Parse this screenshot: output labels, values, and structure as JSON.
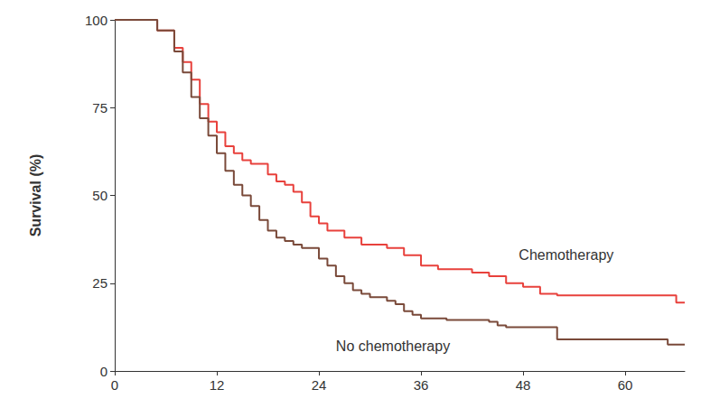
{
  "chart_data": {
    "type": "line",
    "y_label": "Survival (%)",
    "xlim": [
      0,
      67
    ],
    "xticks": [
      0,
      12,
      24,
      36,
      48,
      60
    ],
    "ylim": [
      0,
      100
    ],
    "yticks": [
      0,
      25,
      50,
      75,
      100
    ],
    "grid": false,
    "line_style": "step",
    "series": [
      {
        "name": "Chemotherapy",
        "color": "#e8413c",
        "x": [
          0,
          3,
          5,
          7,
          8,
          9,
          10,
          11,
          12,
          13,
          14,
          15,
          16,
          18,
          19,
          20,
          21,
          22,
          23,
          24,
          25,
          27,
          29,
          32,
          34,
          36,
          38,
          42,
          44,
          46,
          48,
          50,
          52,
          66,
          67
        ],
        "values": [
          100,
          100,
          97,
          92,
          88,
          83,
          76,
          71,
          68,
          64,
          62,
          60,
          59,
          56,
          54,
          53,
          51,
          48,
          44,
          42,
          40,
          38,
          36,
          35,
          33,
          30,
          29,
          28,
          27,
          25,
          24,
          22,
          21.5,
          19.5,
          19.5
        ]
      },
      {
        "name": "No chemotherapy",
        "color": "#7a4a3a",
        "x": [
          0,
          3,
          5,
          7,
          8,
          9,
          10,
          11,
          12,
          13,
          14,
          15,
          16,
          17,
          18,
          19,
          20,
          21,
          22,
          24,
          25,
          26,
          27,
          28,
          29,
          30,
          32,
          33,
          34,
          35,
          36,
          39,
          44,
          45,
          46,
          52,
          65,
          67
        ],
        "values": [
          100,
          100,
          97,
          91,
          85,
          78,
          72,
          67,
          62,
          57,
          53,
          50,
          47,
          43,
          40,
          38,
          37,
          36,
          35,
          32,
          30,
          27,
          25,
          23,
          22,
          21,
          20,
          19,
          17,
          16,
          15,
          14.5,
          14,
          13,
          12.5,
          9,
          7.5,
          7.5
        ]
      }
    ],
    "annotations": [
      {
        "text": "Chemotherapy",
        "x": 47.5,
        "y": 33
      },
      {
        "text": "No chemotherapy",
        "x": 26,
        "y": 7
      }
    ]
  }
}
